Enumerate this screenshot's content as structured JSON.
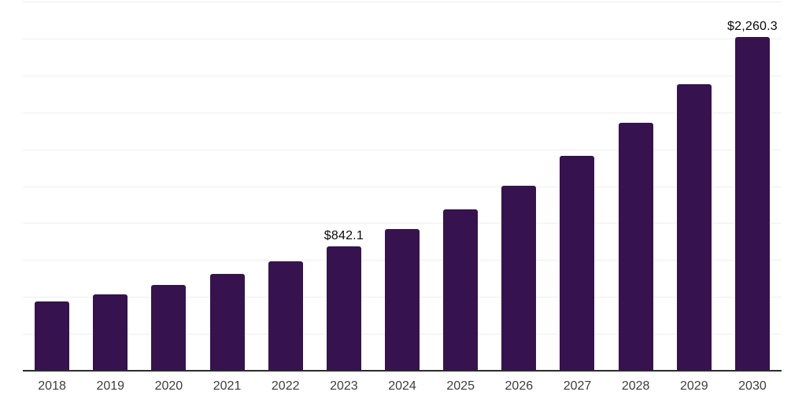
{
  "chart_data": {
    "type": "bar",
    "categories": [
      "2018",
      "2019",
      "2020",
      "2021",
      "2022",
      "2023",
      "2024",
      "2025",
      "2026",
      "2027",
      "2028",
      "2029",
      "2030"
    ],
    "values": [
      467.2,
      518.6,
      582.3,
      654.7,
      738.5,
      842.1,
      958.0,
      1090.3,
      1254.5,
      1455.5,
      1677.8,
      1938.9,
      2260.3
    ],
    "value_labels": [
      "",
      "",
      "",
      "",
      "",
      "$842.1",
      "",
      "",
      "",
      "",
      "",
      "",
      "$2,260.3"
    ],
    "ylim": [
      0,
      2500
    ],
    "gridline_step": 250,
    "grid": "horizontal",
    "legend": "none",
    "colors": {
      "bar": "#36124F",
      "gridline": "#efefef",
      "axis_line": "#2b2b2b",
      "tick_label": "#3d3d3d",
      "data_label": "#0a0a0a",
      "background": "#ffffff"
    }
  }
}
